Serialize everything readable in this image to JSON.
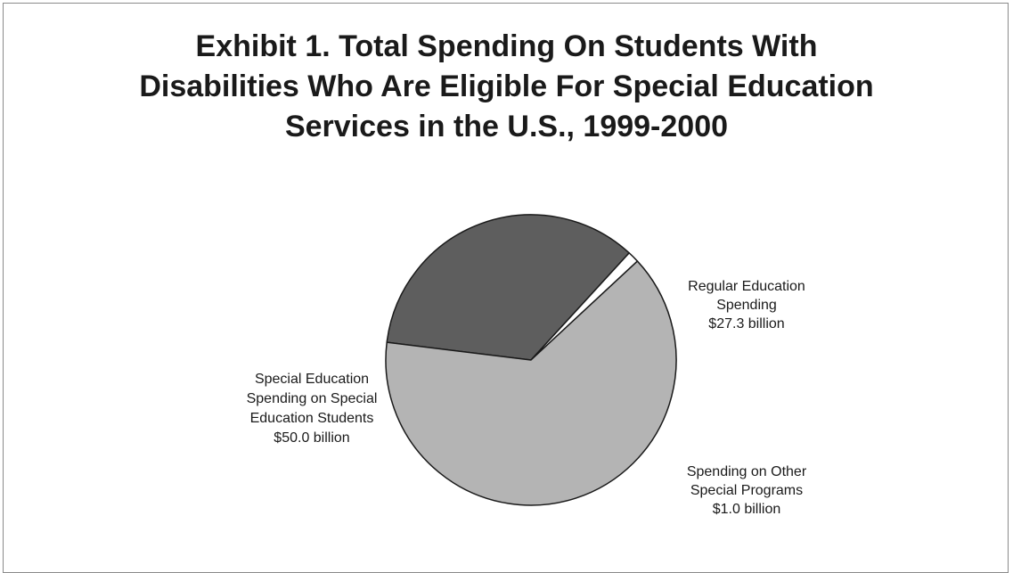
{
  "chart_data": {
    "type": "pie",
    "title_lines": [
      "Exhibit 1. Total Spending On Students With",
      "Disabilities Who Are Eligible For Special Education",
      "Services in the U.S., 1999-2000"
    ],
    "unit": "billion",
    "slices": [
      {
        "name": "Regular Education Spending",
        "value": 27.3,
        "label_lines": [
          "Regular Education",
          "Spending",
          "$27.3 billion"
        ],
        "color": "#5e5e5e",
        "label_anchor": "middle"
      },
      {
        "name": "Spending on Other Special Programs",
        "value": 1.0,
        "label_lines": [
          "Spending on Other",
          "Special  Programs",
          "$1.0 billion"
        ],
        "color": "#ffffff",
        "label_anchor": "middle"
      },
      {
        "name": "Special Education Spending on Special Education Students",
        "value": 50.0,
        "label_lines": [
          "Special Education",
          "Spending on Special",
          "Education Students",
          "$50.0 billion"
        ],
        "color": "#b4b4b4",
        "label_anchor": "middle"
      }
    ],
    "legend": "none",
    "grid": false
  }
}
